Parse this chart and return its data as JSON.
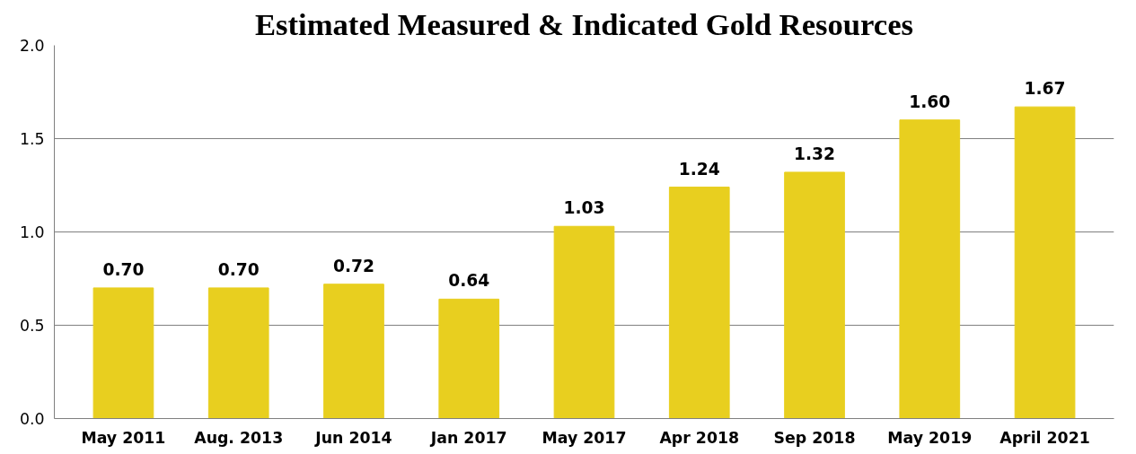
{
  "chart_data": {
    "type": "bar",
    "title": "Estimated Measured & Indicated Gold Resources",
    "categories": [
      "May 2011",
      "Aug. 2013",
      "Jun 2014",
      "Jan 2017",
      "May 2017",
      "Apr 2018",
      "Sep 2018",
      "May 2019",
      "April 2021"
    ],
    "values": [
      0.7,
      0.7,
      0.72,
      0.64,
      1.03,
      1.24,
      1.32,
      1.6,
      1.67
    ],
    "color": "#e8cf1f",
    "ylim": [
      0,
      2.0
    ],
    "yticks": [
      {
        "value": 0,
        "label": "0.0"
      },
      {
        "value": 0.5,
        "label": "0.5"
      },
      {
        "value": 1.0,
        "label": "1.0"
      },
      {
        "value": 1.5,
        "label": "1.5"
      },
      {
        "value": 2.0,
        "label": "2.0"
      }
    ],
    "value_labels": [
      "0.70",
      "0.70",
      "0.72",
      "0.64",
      "1.03",
      "1.24",
      "1.32",
      "1.60",
      "1.67"
    ],
    "grid": "y"
  }
}
